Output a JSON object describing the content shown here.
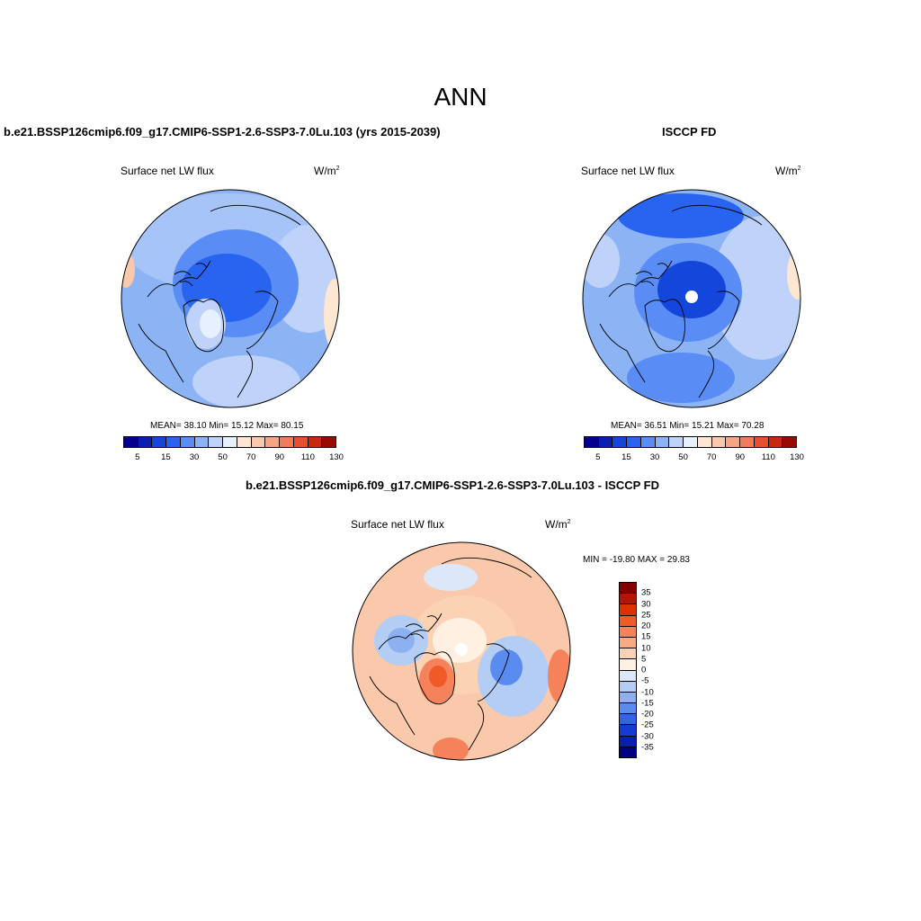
{
  "main_title": "ANN",
  "panels": [
    {
      "title": "b.e21.BSSP126cmip6.f09_g17.CMIP6-SSP1-2.6-SSP3-7.0Lu.103 (yrs 2015-2039)",
      "variable": "Surface net LW flux",
      "units_base": "W/m",
      "units_sup": "2",
      "stats": "MEAN=  38.10  Min=  15.12  Max=  80.15",
      "colorbar_ticks": [
        "5",
        "15",
        "30",
        "50",
        "70",
        "90",
        "110",
        "130"
      ]
    },
    {
      "title": "ISCCP FD",
      "variable": "Surface net LW flux",
      "units_base": "W/m",
      "units_sup": "2",
      "stats": "MEAN=  36.51  Min=  15.21  Max=  70.28",
      "colorbar_ticks": [
        "5",
        "15",
        "30",
        "50",
        "70",
        "90",
        "110",
        "130"
      ]
    },
    {
      "title": "b.e21.BSSP126cmip6.f09_g17.CMIP6-SSP1-2.6-SSP3-7.0Lu.103 - ISCCP FD",
      "variable": "Surface net LW flux",
      "units_base": "W/m",
      "units_sup": "2",
      "stats": "MIN = -19.80 MAX =  29.83",
      "colorbar_ticks": [
        "35",
        "30",
        "25",
        "20",
        "15",
        "10",
        "5",
        "0",
        "-5",
        "-10",
        "-15",
        "-20",
        "-25",
        "-30",
        "-35"
      ]
    }
  ],
  "colors": {
    "abs_scale": [
      "#00008c",
      "#0a1eb4",
      "#1446dc",
      "#2864f0",
      "#5a8cf5",
      "#8cb4f5",
      "#bed2fa",
      "#e6f0ff",
      "#fde6d2",
      "#fac8aa",
      "#f5a582",
      "#f07d5a",
      "#e6502d",
      "#c8280f",
      "#960a00"
    ],
    "diff_scale": [
      "#820000",
      "#b41400",
      "#dc3200",
      "#f05a28",
      "#f5825a",
      "#f8aa82",
      "#fbd2b4",
      "#fff0e1",
      "#dce8fa",
      "#b4cdf5",
      "#8cb0f0",
      "#5a8cf0",
      "#3264e6",
      "#143cd2",
      "#0a1eaa",
      "#000082"
    ],
    "map_base_abs": "#8cb4f5",
    "map_base_diff": "#fac8aa",
    "coast": "#000000"
  }
}
